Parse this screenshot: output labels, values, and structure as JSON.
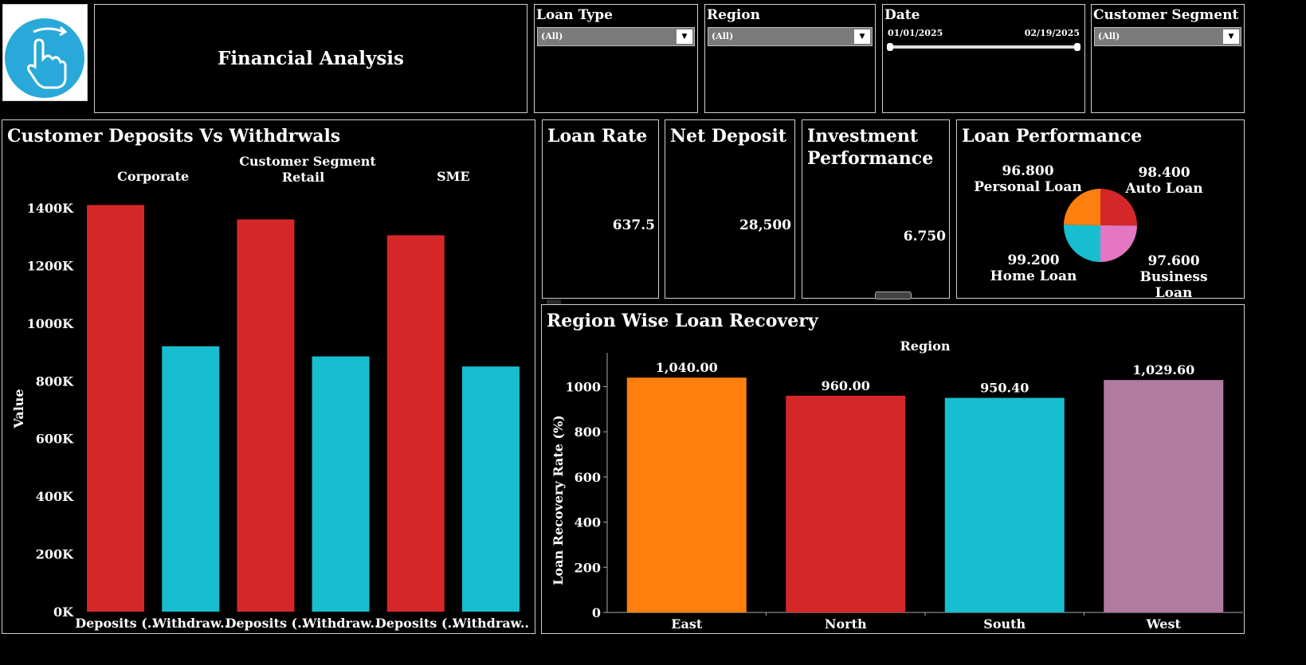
{
  "header": {
    "title": "Financial Analysis",
    "logo_icon": "touch-swipe-hand-icon",
    "accent": "#29a9d9"
  },
  "filters": [
    {
      "label": "Loan Type",
      "value": "(All)"
    },
    {
      "label": "Region",
      "value": "(All)"
    },
    {
      "label": "Date",
      "start": "01/01/2025",
      "end": "02/19/2025"
    },
    {
      "label": "Customer Segment",
      "value": "(All)"
    }
  ],
  "deposits_panel": {
    "title": "Customer Deposits Vs Withdrwals",
    "group_header": "Customer Segment",
    "y_axis_label": "Value"
  },
  "kpis": [
    {
      "title": "Loan Rate",
      "value": "637.5"
    },
    {
      "title": "Net Deposit",
      "value": "28,500"
    },
    {
      "title": "Investment Performance",
      "value": "6.750"
    }
  ],
  "loan_performance": {
    "title": "Loan Performance"
  },
  "recovery_panel": {
    "title": "Region Wise Loan Recovery",
    "header": "Region",
    "y_axis_label": "Loan Recovery Rate (%)"
  },
  "chart_data": [
    {
      "type": "bar",
      "title": "Customer Deposits Vs Withdrwals",
      "groups": [
        "Corporate",
        "Retail",
        "SME"
      ],
      "categories": [
        "Deposits (..",
        "Withdraw..",
        "Deposits (..",
        "Withdraw..",
        "Deposits (..",
        "Withdraw.."
      ],
      "values": [
        1410000,
        920000,
        1360000,
        885000,
        1305000,
        850000
      ],
      "colors": [
        "#d62728",
        "#17becf",
        "#d62728",
        "#17becf",
        "#d62728",
        "#17becf"
      ],
      "ylabel": "Value",
      "ylim": [
        0,
        1400000
      ],
      "yticks": [
        0,
        200000,
        400000,
        600000,
        800000,
        1000000,
        1200000,
        1400000
      ],
      "ytick_labels": [
        "0K",
        "200K",
        "400K",
        "600K",
        "800K",
        "1000K",
        "1200K",
        "1400K"
      ]
    },
    {
      "type": "pie",
      "title": "Loan Performance",
      "labels": [
        "Personal Loan",
        "Auto Loan",
        "Business Loan",
        "Home Loan"
      ],
      "values": [
        96.8,
        98.4,
        97.6,
        99.2
      ],
      "display_values": [
        "96.800",
        "98.400",
        "97.600",
        "99.200"
      ],
      "colors": [
        "#ff7f0e",
        "#d62728",
        "#e377c2",
        "#17becf"
      ]
    },
    {
      "type": "bar",
      "title": "Region Wise Loan Recovery",
      "categories": [
        "East",
        "North",
        "South",
        "West"
      ],
      "values": [
        1040.0,
        960.0,
        950.4,
        1029.6
      ],
      "data_labels": [
        "1,040.00",
        "960.00",
        "950.40",
        "1,029.60"
      ],
      "colors": [
        "#ff7f0e",
        "#d62728",
        "#17becf",
        "#b07aa1"
      ],
      "xlabel": "Region",
      "ylabel": "Loan Recovery Rate (%)",
      "ylim": [
        0,
        1150
      ],
      "yticks": [
        0,
        200,
        400,
        600,
        800,
        1000
      ]
    }
  ]
}
